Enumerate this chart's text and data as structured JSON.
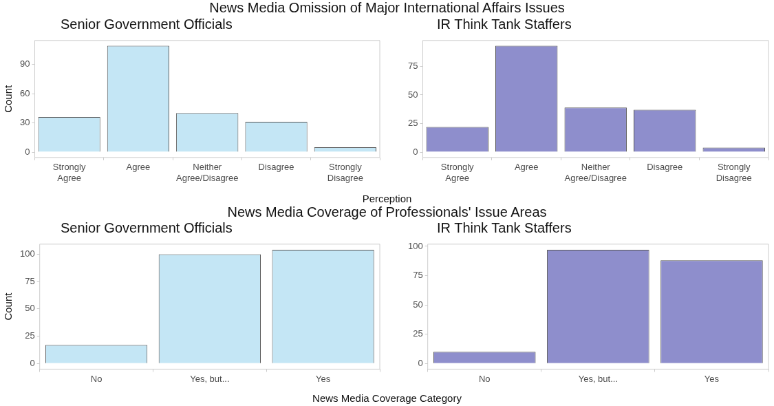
{
  "chart_data": [
    {
      "type": "bar",
      "title": "Senior Government Officials",
      "ylabel": "Count",
      "annotations": [
        "News Media Omission of Major International Affairs Issues",
        "Perception"
      ],
      "categories": [
        "Strongly Agree",
        "Agree",
        "Neither Agree/Disagree",
        "Disagree",
        "Strongly Disagree"
      ],
      "values": [
        36,
        109,
        40,
        31,
        5
      ],
      "color": "#c4e6f5",
      "ylim": [
        -5.45,
        114.45
      ],
      "yticks": [
        0,
        30,
        60,
        90
      ],
      "grid": false
    },
    {
      "type": "bar",
      "title": "IR Think Tank Staffers",
      "categories": [
        "Strongly Agree",
        "Agree",
        "Neither Agree/Disagree",
        "Disagree",
        "Strongly Disagree"
      ],
      "values": [
        22,
        93,
        39,
        37,
        4
      ],
      "color": "#8e8ecc",
      "ylim": [
        -4.65,
        97.65
      ],
      "yticks": [
        0,
        25,
        50,
        75
      ],
      "grid": false
    },
    {
      "type": "bar",
      "title": "Senior Government Officials",
      "ylabel": "Count",
      "annotations": [
        "News Media Coverage of Professionals' Issue Areas",
        "News Media Coverage Category"
      ],
      "categories": [
        "No",
        "Yes, but...",
        "Yes"
      ],
      "values": [
        17,
        100,
        104
      ],
      "color": "#c4e6f5",
      "ylim": [
        -5.2,
        109.2
      ],
      "yticks": [
        0,
        25,
        50,
        75,
        100
      ],
      "grid": false
    },
    {
      "type": "bar",
      "title": "IR Think Tank Staffers",
      "categories": [
        "No",
        "Yes, but...",
        "Yes"
      ],
      "values": [
        10,
        97,
        88
      ],
      "color": "#8e8ecc",
      "ylim": [
        -4.85,
        101.85
      ],
      "yticks": [
        0,
        25,
        50,
        75,
        100
      ],
      "grid": false
    }
  ]
}
